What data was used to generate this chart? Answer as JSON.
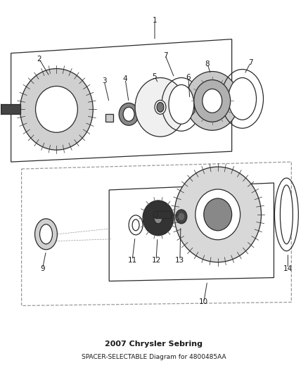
{
  "title": "2007 Chrysler Sebring",
  "subtitle": "SPACER-SELECTABLE Diagram for 4800485AA",
  "bg_color": "#ffffff",
  "line_color": "#2a2a2a",
  "dashed_color": "#999999",
  "label_color": "#1a1a1a",
  "fig_width": 4.38,
  "fig_height": 5.33
}
